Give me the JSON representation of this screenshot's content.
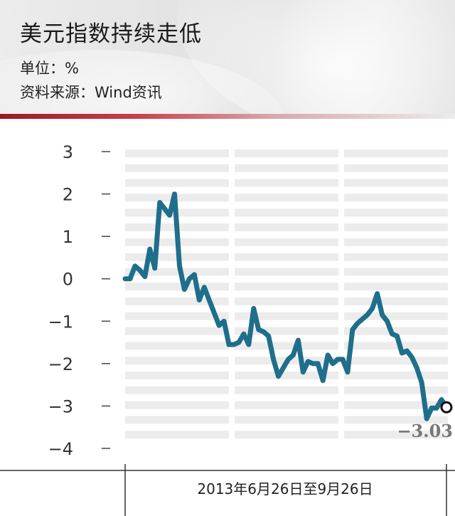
{
  "header": {
    "title": "美元指数持续走低",
    "unit": "单位：%",
    "source": "资料来源：Wind资讯"
  },
  "colors": {
    "line": "#1f6e8c",
    "band": "#ececec",
    "accent": "#9a1a24"
  },
  "chart_data": {
    "type": "line",
    "title": "美元指数持续走低",
    "xlabel": "2013年6月26日至9月26日",
    "ylabel": "",
    "ylim": [
      -4,
      3
    ],
    "yticks": [
      3,
      2,
      1,
      0,
      -1,
      -2,
      -3,
      -4
    ],
    "ytick_labels": [
      "3",
      "2",
      "1",
      "0",
      "−1",
      "−2",
      "−3",
      "−4"
    ],
    "end_label": "−3.03",
    "x": [
      0,
      1,
      2,
      3,
      4,
      5,
      6,
      7,
      8,
      9,
      10,
      11,
      12,
      13,
      14,
      15,
      16,
      17,
      18,
      19,
      20,
      21,
      22,
      23,
      24,
      25,
      26,
      27,
      28,
      29,
      30,
      31,
      32,
      33,
      34,
      35,
      36,
      37,
      38,
      39,
      40,
      41,
      42,
      43,
      44,
      45,
      46,
      47,
      48,
      49,
      50,
      51,
      52,
      53,
      54,
      55,
      56,
      57,
      58,
      59,
      60,
      61,
      62,
      63,
      64,
      65
    ],
    "series": [
      {
        "values": [
          0.0,
          0.0,
          0.3,
          0.2,
          0.05,
          0.7,
          0.25,
          1.8,
          1.65,
          1.5,
          2.0,
          0.3,
          -0.25,
          0.0,
          0.1,
          -0.5,
          -0.2,
          -0.5,
          -0.8,
          -1.1,
          -1.0,
          -1.55,
          -1.55,
          -1.5,
          -1.3,
          -1.55,
          -0.7,
          -1.2,
          -1.25,
          -1.35,
          -1.9,
          -2.3,
          -2.1,
          -1.9,
          -1.8,
          -1.45,
          -2.2,
          -1.95,
          -2.0,
          -2.0,
          -2.4,
          -1.8,
          -2.0,
          -1.9,
          -1.9,
          -2.2,
          -1.2,
          -1.05,
          -0.95,
          -0.85,
          -0.7,
          -0.35,
          -0.85,
          -1.0,
          -1.3,
          -1.35,
          -1.75,
          -1.7,
          -1.85,
          -2.1,
          -2.45,
          -3.3,
          -3.05,
          -3.05,
          -2.85,
          -3.03
        ]
      }
    ]
  }
}
